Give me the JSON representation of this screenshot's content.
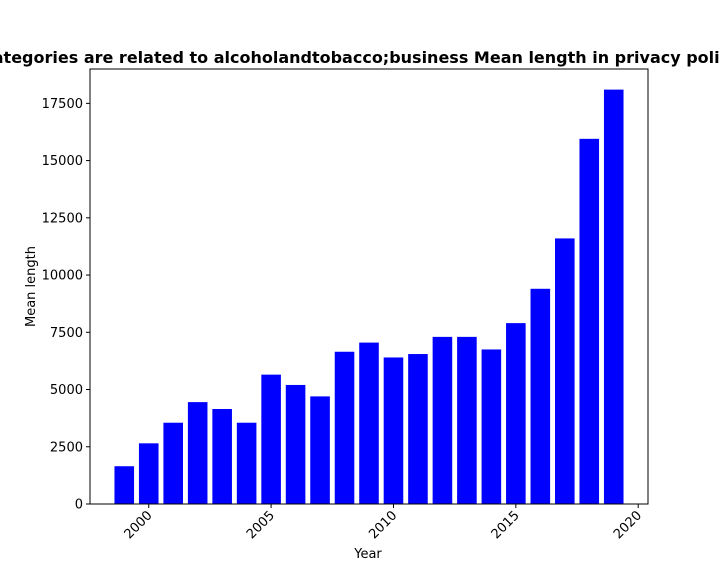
{
  "chart_data": {
    "type": "bar",
    "title": "Categories are related to alcoholandtobacco;business Mean length in privacy policies",
    "xlabel": "Year",
    "ylabel": "Mean length",
    "x": [
      1999,
      2000,
      2001,
      2002,
      2003,
      2004,
      2005,
      2006,
      2007,
      2008,
      2009,
      2010,
      2011,
      2012,
      2013,
      2014,
      2015,
      2016,
      2017,
      2018,
      2019
    ],
    "values": [
      1650,
      2650,
      3550,
      4450,
      4150,
      3550,
      5650,
      5200,
      4700,
      6650,
      7050,
      6400,
      6550,
      7300,
      7300,
      6750,
      7900,
      9400,
      11600,
      15950,
      18100
    ],
    "xlim": [
      1997.6,
      2020.4
    ],
    "ylim": [
      0,
      19000
    ],
    "xticks": [
      2000,
      2005,
      2010,
      2015,
      2020
    ],
    "yticks": [
      0,
      2500,
      5000,
      7500,
      10000,
      12500,
      15000,
      17500
    ],
    "bar_color": "#0000ff",
    "grid": false,
    "legend": "none"
  }
}
